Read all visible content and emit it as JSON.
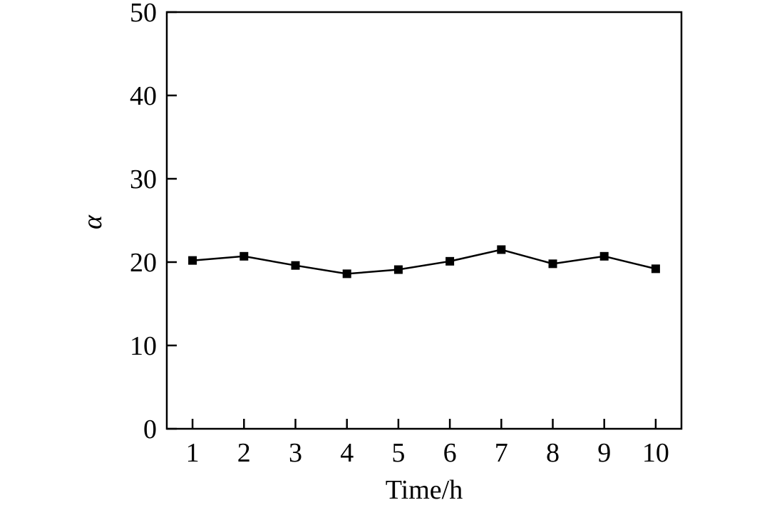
{
  "chart_data": {
    "type": "line",
    "title": "",
    "xlabel": "Time/h",
    "ylabel": "α",
    "x": [
      1,
      2,
      3,
      4,
      5,
      6,
      7,
      8,
      9,
      10
    ],
    "xlim": [
      0.5,
      10.5
    ],
    "ylim": [
      0,
      50
    ],
    "x_ticks": [
      "1",
      "2",
      "3",
      "4",
      "5",
      "6",
      "7",
      "8",
      "9",
      "10"
    ],
    "y_ticks": [
      "0",
      "10",
      "20",
      "30",
      "40",
      "50"
    ],
    "grid": false,
    "legend": "none",
    "series": [
      {
        "marker": "square",
        "color": "#000000",
        "values": [
          20.2,
          20.7,
          19.6,
          18.6,
          19.1,
          20.1,
          21.5,
          19.8,
          20.7,
          19.2
        ]
      }
    ]
  }
}
